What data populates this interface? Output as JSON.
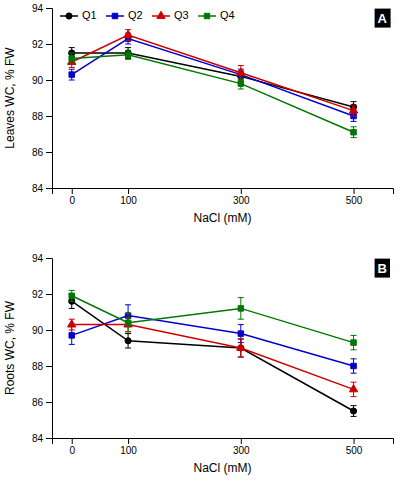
{
  "chart_data": [
    {
      "type": "line",
      "title": "A",
      "xlabel": "NaCl (mM)",
      "ylabel": "Leaves WC, % FW",
      "x": [
        0,
        100,
        300,
        500
      ],
      "xlim": [
        -35,
        570
      ],
      "xticks": [
        0,
        100,
        300,
        500
      ],
      "ylim": [
        84,
        94
      ],
      "yticks": [
        84,
        86,
        88,
        90,
        92,
        94
      ],
      "legend": "top-left",
      "series": [
        {
          "name": "Q1",
          "color": "#000000",
          "marker": "circle",
          "values": [
            91.5,
            91.5,
            90.2,
            88.5
          ],
          "errors": [
            0.3,
            0.3,
            0.3,
            0.3
          ]
        },
        {
          "name": "Q2",
          "color": "#0000cc",
          "marker": "square",
          "values": [
            90.3,
            92.3,
            90.3,
            88.0
          ],
          "errors": [
            0.3,
            0.3,
            0.3,
            0.3
          ]
        },
        {
          "name": "Q3",
          "color": "#cc0000",
          "marker": "triangle",
          "values": [
            91.0,
            92.5,
            90.4,
            88.3
          ],
          "errors": [
            0.3,
            0.3,
            0.4,
            0.3
          ]
        },
        {
          "name": "Q4",
          "color": "#007700",
          "marker": "square",
          "values": [
            91.2,
            91.4,
            89.8,
            87.1
          ],
          "errors": [
            0.3,
            0.25,
            0.3,
            0.3
          ]
        }
      ]
    },
    {
      "type": "line",
      "title": "B",
      "xlabel": "NaCl (mM)",
      "ylabel": "Roots WC, % FW",
      "x": [
        0,
        100,
        300,
        500
      ],
      "xlim": [
        -35,
        570
      ],
      "xticks": [
        0,
        100,
        300,
        500
      ],
      "ylim": [
        84,
        94
      ],
      "yticks": [
        84,
        86,
        88,
        90,
        92,
        94
      ],
      "series": [
        {
          "name": "Q1",
          "color": "#000000",
          "marker": "circle",
          "values": [
            91.6,
            89.4,
            89.0,
            85.5
          ],
          "errors": [
            0.4,
            0.4,
            0.5,
            0.3
          ]
        },
        {
          "name": "Q2",
          "color": "#0000cc",
          "marker": "square",
          "values": [
            89.7,
            90.8,
            89.8,
            88.0
          ],
          "errors": [
            0.5,
            0.6,
            0.5,
            0.4
          ]
        },
        {
          "name": "Q3",
          "color": "#cc0000",
          "marker": "triangle",
          "values": [
            90.3,
            90.3,
            89.0,
            86.7
          ],
          "errors": [
            0.3,
            0.4,
            0.5,
            0.4
          ]
        },
        {
          "name": "Q4",
          "color": "#007700",
          "marker": "square",
          "values": [
            91.9,
            90.4,
            91.2,
            89.3
          ],
          "errors": [
            0.3,
            0.5,
            0.6,
            0.4
          ]
        }
      ]
    }
  ]
}
